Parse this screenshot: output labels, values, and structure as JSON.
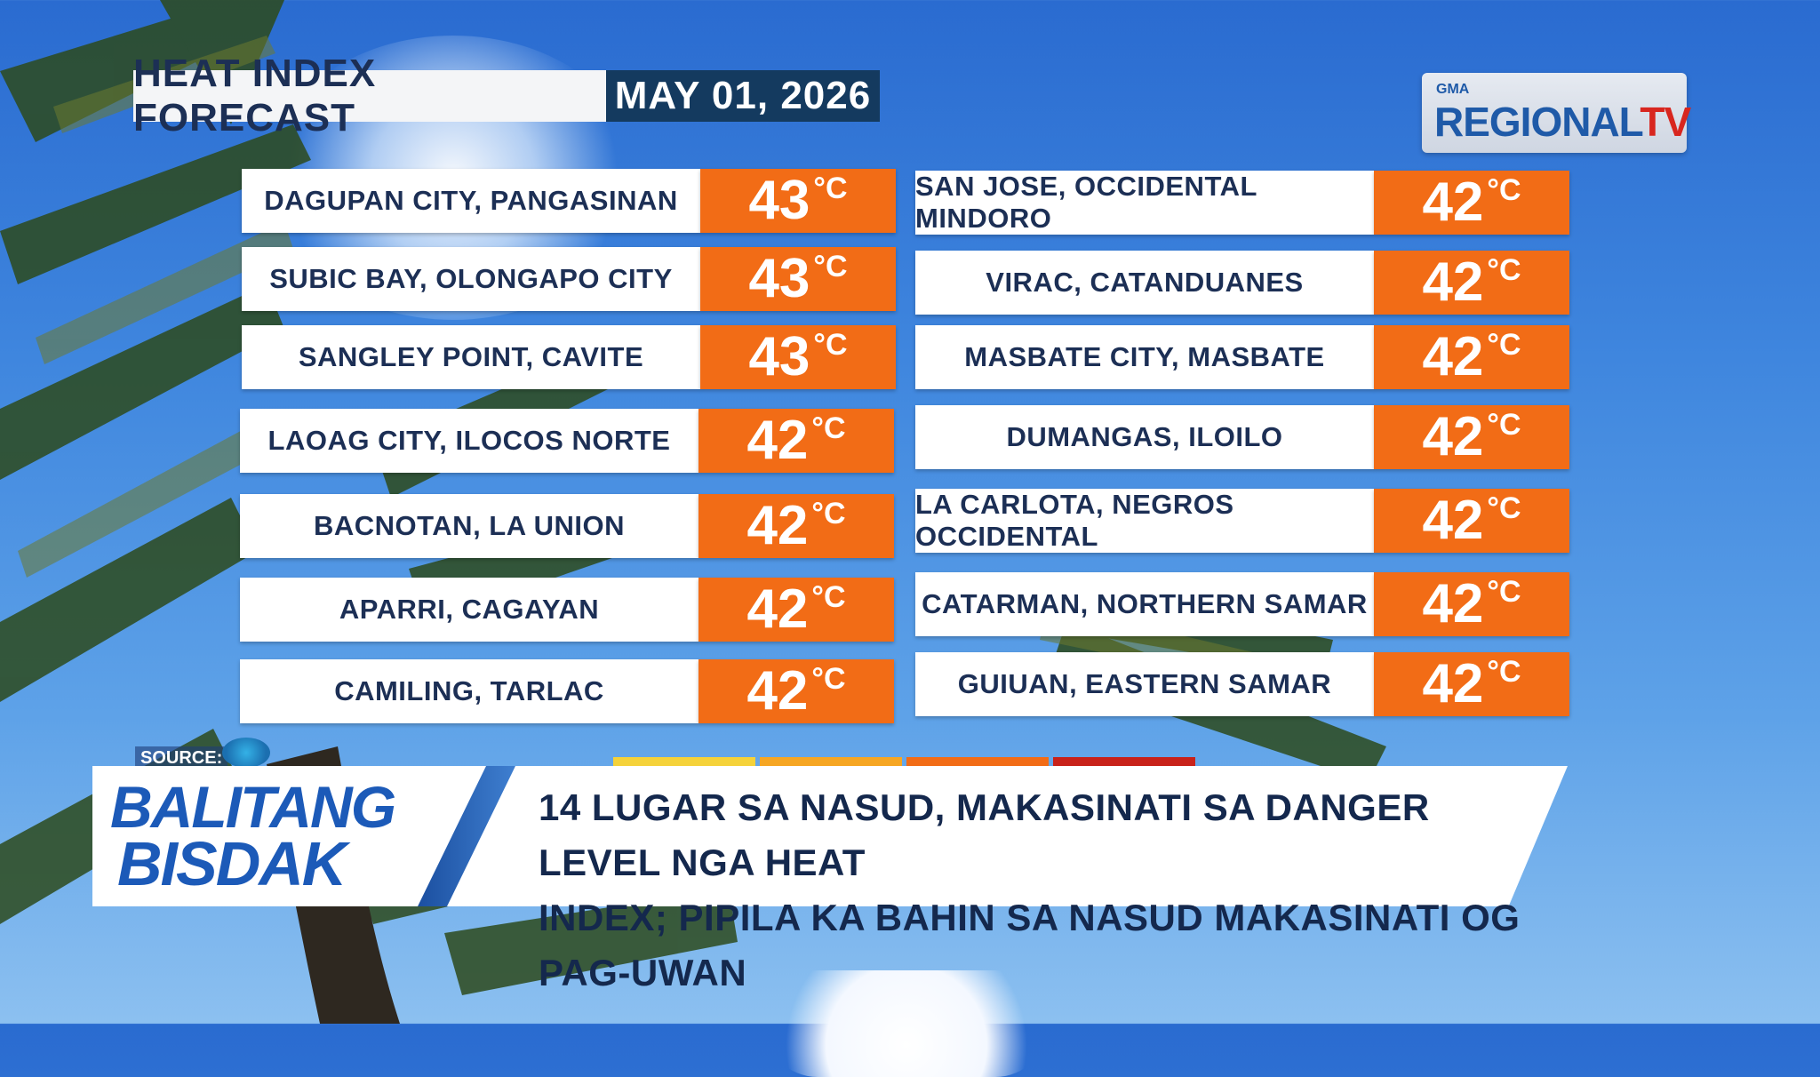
{
  "title": {
    "label": "HEAT INDEX FORECAST",
    "date": "MAY 01, 2026"
  },
  "logo": {
    "small": "GMA",
    "main_regional": "REGIONAL",
    "main_tv": "TV"
  },
  "forecast": {
    "left": [
      {
        "place": "DAGUPAN CITY, PANGASINAN",
        "temp": "43",
        "unit": "°C"
      },
      {
        "place": "SUBIC BAY, OLONGAPO CITY",
        "temp": "43",
        "unit": "°C"
      },
      {
        "place": "SANGLEY POINT, CAVITE",
        "temp": "43",
        "unit": "°C"
      },
      {
        "place": "LAOAG CITY, ILOCOS NORTE",
        "temp": "42",
        "unit": "°C"
      },
      {
        "place": "BACNOTAN, LA UNION",
        "temp": "42",
        "unit": "°C"
      },
      {
        "place": "APARRI, CAGAYAN",
        "temp": "42",
        "unit": "°C"
      },
      {
        "place": "CAMILING, TARLAC",
        "temp": "42",
        "unit": "°C"
      }
    ],
    "right": [
      {
        "place": "SAN JOSE, OCCIDENTAL MINDORO",
        "temp": "42",
        "unit": "°C"
      },
      {
        "place": "VIRAC, CATANDUANES",
        "temp": "42",
        "unit": "°C"
      },
      {
        "place": "MASBATE CITY, MASBATE",
        "temp": "42",
        "unit": "°C"
      },
      {
        "place": "DUMANGAS, ILOILO",
        "temp": "42",
        "unit": "°C"
      },
      {
        "place": "LA CARLOTA, NEGROS OCCIDENTAL",
        "temp": "42",
        "unit": "°C"
      },
      {
        "place": "CATARMAN, NORTHERN SAMAR",
        "temp": "42",
        "unit": "°C"
      },
      {
        "place": "GUIUAN, EASTERN SAMAR",
        "temp": "42",
        "unit": "°C"
      }
    ]
  },
  "source": {
    "label": "SOURCE:"
  },
  "lower_third": {
    "brand_line1": "BALITANG",
    "brand_line2": "BISDAK",
    "headline_line1": "14 LUGAR SA NASUD, MAKASINATI SA DANGER LEVEL NGA HEAT",
    "headline_line2": "INDEX; PIPILA KA BAHIN SA NASUD MAKASINATI OG PAG-UWAN"
  },
  "colors": {
    "temp_bg": "#f26c16",
    "title_dark": "#143a5f",
    "brand_blue": "#1c5ab8"
  }
}
